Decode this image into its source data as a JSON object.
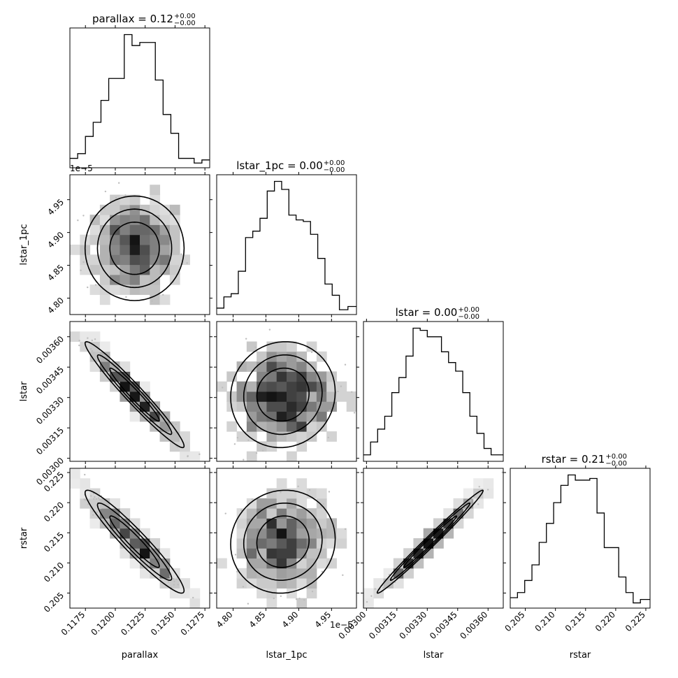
{
  "chart_data": {
    "type": "corner",
    "parameters": [
      "parallax",
      "lstar_1pc",
      "lstar",
      "rstar"
    ],
    "axis_labels": [
      "parallax",
      "lstar_1pc",
      "lstar",
      "rstar"
    ],
    "titles": [
      {
        "name": "parallax",
        "value": "0.12",
        "plus": "+0.00",
        "minus": "−0.00"
      },
      {
        "name": "lstar_1pc",
        "value": "0.00",
        "plus": "+0.00",
        "minus": "−0.00"
      },
      {
        "name": "lstar",
        "value": "0.00",
        "plus": "+0.00",
        "minus": "−0.00"
      },
      {
        "name": "rstar",
        "value": "0.21",
        "plus": "+0.00",
        "minus": "−0.00"
      }
    ],
    "ranges": [
      [
        0.1162,
        0.1279
      ],
      [
        4.775,
        4.988
      ],
      [
        0.002985,
        0.003675
      ],
      [
        0.2025,
        0.2257
      ]
    ],
    "ticks": [
      {
        "values": [
          0.1175,
          0.12,
          0.1225,
          0.125,
          0.1275
        ],
        "labels": [
          "0.1175",
          "0.1200",
          "0.1225",
          "0.1250",
          "0.1275"
        ]
      },
      {
        "values": [
          4.8,
          4.85,
          4.9,
          4.95
        ],
        "labels": [
          "4.80",
          "4.85",
          "4.90",
          "4.95"
        ]
      },
      {
        "values": [
          0.003,
          0.00315,
          0.0033,
          0.00345,
          0.0036
        ],
        "labels": [
          "0.00300",
          "0.00315",
          "0.00330",
          "0.00345",
          "0.00360"
        ]
      },
      {
        "values": [
          0.205,
          0.21,
          0.215,
          0.22,
          0.225
        ],
        "labels": [
          "0.205",
          "0.210",
          "0.215",
          "0.220",
          "0.225"
        ]
      }
    ],
    "offset_texts": {
      "lstar_1pc_y": "1e−5",
      "lstar_1pc_x": "1e−5"
    },
    "histograms": [
      {
        "param": "parallax",
        "bin_edges": [
          0.1162,
          0.11685,
          0.1175,
          0.11815,
          0.1188,
          0.11945,
          0.1201,
          0.12075,
          0.1214,
          0.12205,
          0.1227,
          0.12335,
          0.124,
          0.12465,
          0.1253,
          0.12595,
          0.1266,
          0.12725,
          0.1279
        ],
        "counts": [
          6,
          9,
          20,
          29,
          43,
          57,
          57,
          85,
          78,
          80,
          80,
          56,
          34,
          22,
          6,
          6,
          3,
          5
        ]
      },
      {
        "param": "lstar_1pc",
        "bin_edges": [
          4.775,
          4.786,
          4.797,
          4.808,
          4.819,
          4.83,
          4.841,
          4.852,
          4.863,
          4.874,
          4.885,
          4.896,
          4.907,
          4.918,
          4.929,
          4.94,
          4.951,
          4.962,
          4.975,
          4.988
        ],
        "counts": [
          4,
          11,
          13,
          27,
          48,
          52,
          60,
          77,
          83,
          78,
          62,
          59,
          58,
          50,
          35,
          19,
          12,
          3,
          5
        ]
      },
      {
        "param": "lstar",
        "bin_edges": [
          0.002985,
          0.00302,
          0.003055,
          0.00309,
          0.003125,
          0.00316,
          0.003195,
          0.00323,
          0.003265,
          0.0033,
          0.003335,
          0.00337,
          0.003405,
          0.00344,
          0.003475,
          0.00351,
          0.003545,
          0.00358,
          0.003615,
          0.003675
        ],
        "counts": [
          3,
          9,
          15,
          21,
          32,
          39,
          49,
          62,
          61,
          58,
          58,
          51,
          46,
          42,
          32,
          21,
          13,
          6,
          3
        ]
      },
      {
        "param": "rstar",
        "bin_edges": [
          0.2025,
          0.2037,
          0.2049,
          0.2061,
          0.2073,
          0.2085,
          0.2097,
          0.2109,
          0.2121,
          0.2133,
          0.2145,
          0.2157,
          0.2169,
          0.2181,
          0.2193,
          0.2205,
          0.2217,
          0.2229,
          0.2241,
          0.2257
        ],
        "counts": [
          6,
          9,
          16,
          25,
          38,
          49,
          61,
          71,
          77,
          74,
          74,
          75,
          55,
          35,
          35,
          18,
          9,
          3,
          5
        ]
      }
    ],
    "grid": false,
    "legend": "none"
  }
}
